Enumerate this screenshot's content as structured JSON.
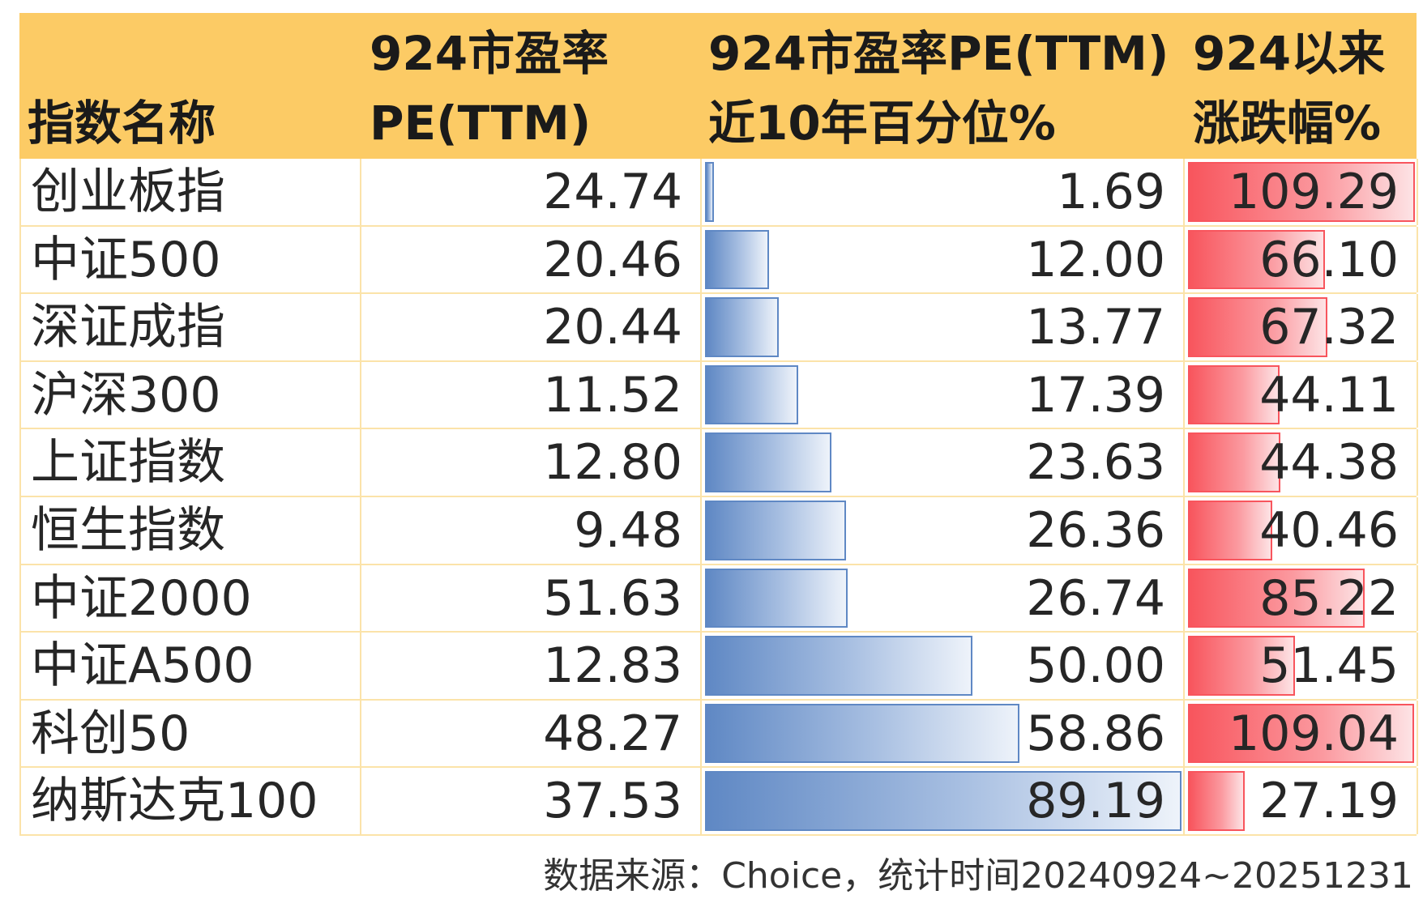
{
  "chart_data": {
    "type": "table",
    "columns": [
      [
        "指数名称"
      ],
      [
        "924市盈率",
        "PE(TTM)"
      ],
      [
        "924市盈率PE(TTM)",
        "近10年百分位%"
      ],
      [
        "924以来",
        "涨跌幅%"
      ]
    ],
    "rows": [
      {
        "name": "创业板指",
        "pe": "24.74",
        "percentile": 1.69,
        "percentile_text": "1.69",
        "change": 109.29,
        "change_text": "109.29"
      },
      {
        "name": "中证500",
        "pe": "20.46",
        "percentile": 12.0,
        "percentile_text": "12.00",
        "change": 66.1,
        "change_text": "66.10"
      },
      {
        "name": "深证成指",
        "pe": "20.44",
        "percentile": 13.77,
        "percentile_text": "13.77",
        "change": 67.32,
        "change_text": "67.32"
      },
      {
        "name": "沪深300",
        "pe": "11.52",
        "percentile": 17.39,
        "percentile_text": "17.39",
        "change": 44.11,
        "change_text": "44.11"
      },
      {
        "name": "上证指数",
        "pe": "12.80",
        "percentile": 23.63,
        "percentile_text": "23.63",
        "change": 44.38,
        "change_text": "44.38"
      },
      {
        "name": "恒生指数",
        "pe": "9.48",
        "percentile": 26.36,
        "percentile_text": "26.36",
        "change": 40.46,
        "change_text": "40.46"
      },
      {
        "name": "中证2000",
        "pe": "51.63",
        "percentile": 26.74,
        "percentile_text": "26.74",
        "change": 85.22,
        "change_text": "85.22"
      },
      {
        "name": "中证A500",
        "pe": "12.83",
        "percentile": 50.0,
        "percentile_text": "50.00",
        "change": 51.45,
        "change_text": "51.45"
      },
      {
        "name": "科创50",
        "pe": "48.27",
        "percentile": 58.86,
        "percentile_text": "58.86",
        "change": 109.04,
        "change_text": "109.04"
      },
      {
        "name": "纳斯达克100",
        "pe": "37.53",
        "percentile": 89.19,
        "percentile_text": "89.19",
        "change": 27.19,
        "change_text": "27.19"
      }
    ],
    "percentile_bar_max": 89.19,
    "change_bar_max": 109.29,
    "colors": {
      "header_bg": "#fccb65",
      "grid": "#fbe3a9",
      "percentile_bar": "#5f88c4",
      "change_bar": "#f8555d"
    }
  },
  "footnote": "数据来源：Choice，统计时间20240924~20251231"
}
